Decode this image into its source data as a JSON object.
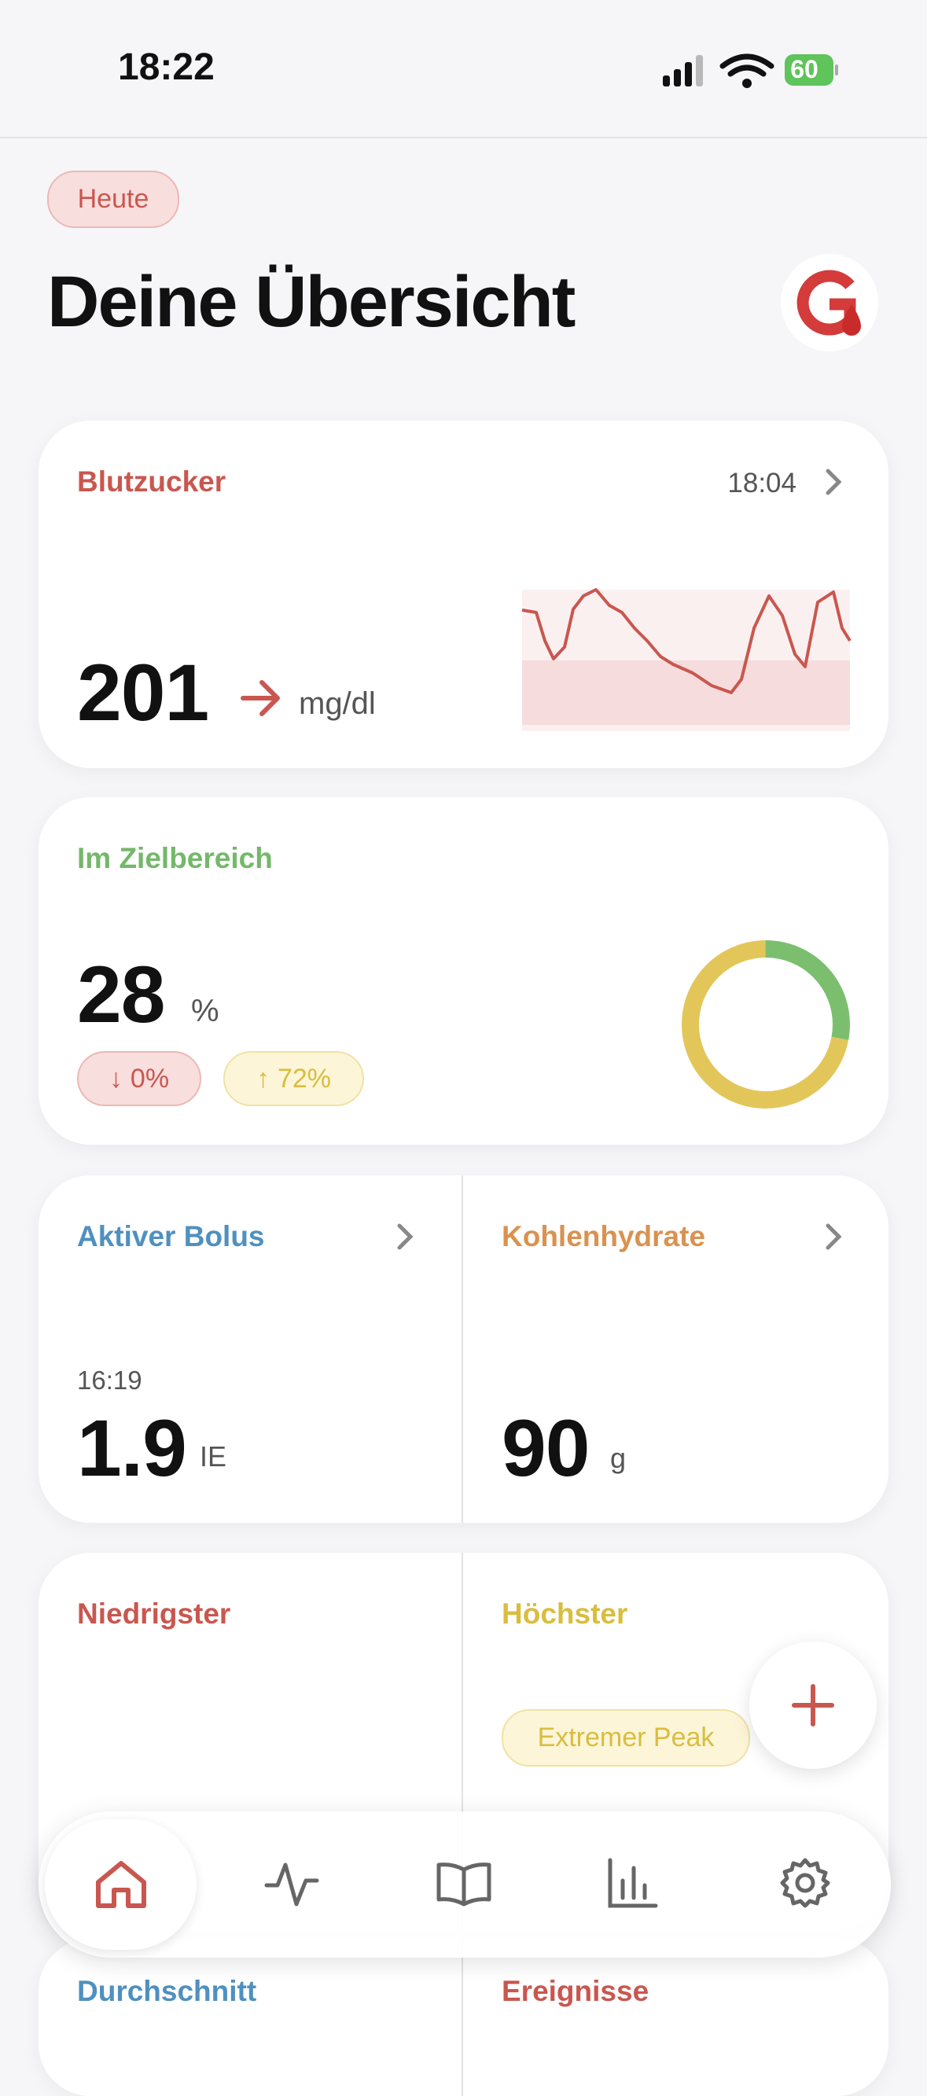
{
  "status_bar": {
    "time": "18:22",
    "battery": "60"
  },
  "header": {
    "badge": "Heute",
    "title": "Deine Übersicht"
  },
  "cards": {
    "glucose": {
      "title": "Blutzucker",
      "time": "18:04",
      "value": "201",
      "unit": "mg/dl"
    },
    "in_range": {
      "title": "Im Zielbereich",
      "value": 28,
      "unit": "%",
      "low": {
        "arrow": "↓",
        "value": 0,
        "label": "0%"
      },
      "high": {
        "arrow": "↑",
        "value": 72,
        "label": "72%"
      }
    },
    "bolus": {
      "title": "Aktiver Bolus",
      "time": "16:19",
      "value": "1.9",
      "unit": "IE"
    },
    "carbs": {
      "title": "Kohlenhydrate",
      "value": "90",
      "unit": "g"
    },
    "lowest": {
      "title": "Niedrigster"
    },
    "highest": {
      "title": "Höchster",
      "badge": "Extremer Peak"
    },
    "average": {
      "title": "Durchschnitt"
    },
    "events": {
      "title": "Ereignisse"
    }
  }
}
